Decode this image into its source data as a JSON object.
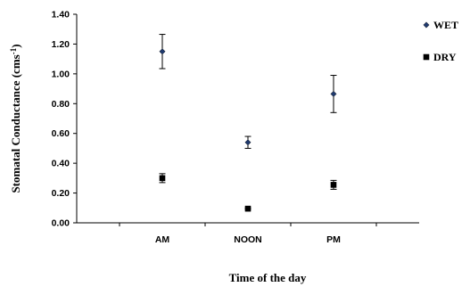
{
  "chart_data": {
    "type": "scatter",
    "categories": [
      "AM",
      "NOON",
      "PM"
    ],
    "series": [
      {
        "name": "WET",
        "values": [
          1.15,
          0.54,
          0.865
        ],
        "errors": [
          0.115,
          0.04,
          0.125
        ],
        "marker": "diamond",
        "color": "#1f3a6e"
      },
      {
        "name": "DRY",
        "values": [
          0.3,
          0.095,
          0.255
        ],
        "errors": [
          0.03,
          0.005,
          0.03
        ],
        "marker": "square",
        "color": "#000000"
      }
    ],
    "xlabel": "Time of the day",
    "ylabel_main": "Stomatal Conductance (cms",
    "ylabel_sup": "-1",
    "ylabel_end": ")",
    "ylim": [
      0,
      1.4
    ],
    "yticks": [
      "0.00",
      "0.20",
      "0.40",
      "0.60",
      "0.80",
      "1.00",
      "1.20",
      "1.40"
    ],
    "grid": false,
    "legend_position": "top-right"
  }
}
